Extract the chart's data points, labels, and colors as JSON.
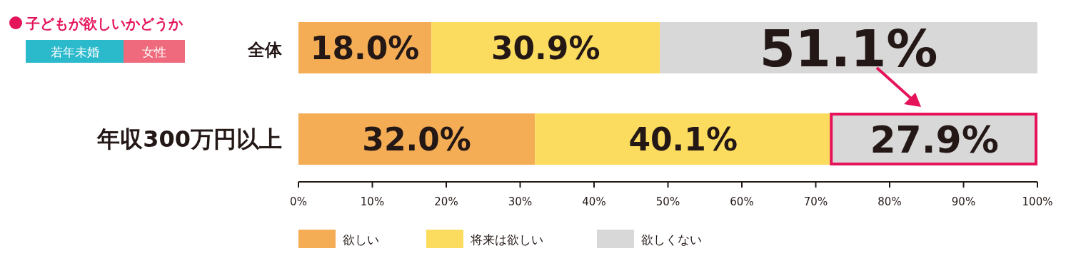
{
  "chart_data": {
    "type": "bar",
    "orientation": "horizontal",
    "stacked": true,
    "title": "子どもが欲しいかどうか",
    "annotations": [
      "若年未婚",
      "女性"
    ],
    "categories": [
      "全体",
      "年収300万円以上"
    ],
    "series": [
      {
        "name": "欲しい",
        "color": "#f5ad55",
        "values": [
          18.0,
          32.0
        ],
        "value_labels": [
          "18.0%",
          "32.0%"
        ]
      },
      {
        "name": "将来は欲しい",
        "color": "#fcdc5f",
        "values": [
          30.9,
          40.1
        ],
        "value_labels": [
          "30.9%",
          "40.1%"
        ]
      },
      {
        "name": "欲しくない",
        "color": "#d9d8d9",
        "values": [
          51.1,
          27.9
        ],
        "value_labels": [
          "51.1%",
          "27.9%"
        ]
      }
    ],
    "xlim": [
      0,
      100
    ],
    "xticks": [
      {
        "value": 0,
        "label": "0%"
      },
      {
        "value": 10,
        "label": "10%"
      },
      {
        "value": 20,
        "label": "20%"
      },
      {
        "value": 30,
        "label": "30%"
      },
      {
        "value": 40,
        "label": "40%"
      },
      {
        "value": 50,
        "label": "50%"
      },
      {
        "value": 60,
        "label": "60%"
      },
      {
        "value": 70,
        "label": "70%"
      },
      {
        "value": 80,
        "label": "80%"
      },
      {
        "value": 90,
        "label": "90%"
      },
      {
        "value": 100,
        "label": "100%"
      }
    ],
    "grid": false,
    "legend": "bottom"
  }
}
